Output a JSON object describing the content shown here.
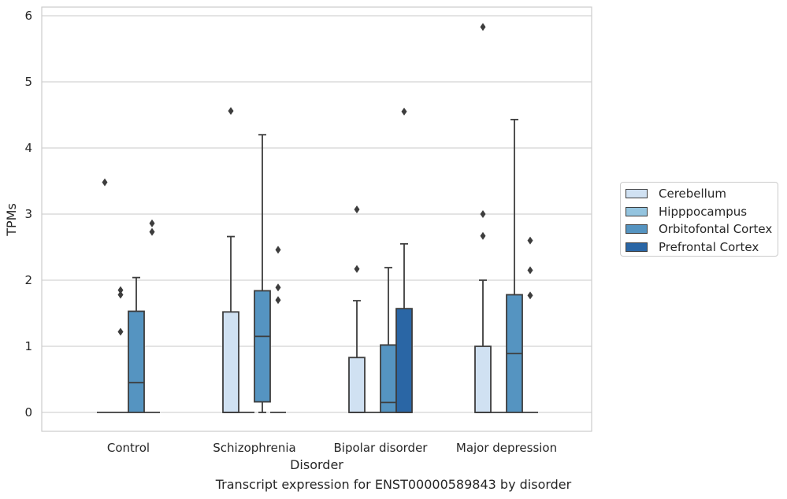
{
  "chart_data": {
    "type": "box",
    "title": "Transcript expression for ENST00000589843 by disorder",
    "xlabel": "Disorder",
    "ylabel": "TPMs",
    "ylim": [
      -0.28,
      6.12
    ],
    "yticks": [
      0,
      1,
      2,
      3,
      4,
      5,
      6
    ],
    "grid": "horizontal",
    "legend_position": "right",
    "categories": [
      "Control",
      "Schizophrenia",
      "Bipolar disorder",
      "Major depression"
    ],
    "series": [
      {
        "name": "Cerebellum",
        "color": "#d0e1f2",
        "boxes": [
          {
            "q1": 0,
            "median": 0,
            "q3": 0,
            "whisker_low": 0,
            "whisker_high": 0,
            "outliers": [
              3.48
            ]
          },
          {
            "q1": 0,
            "median": 0,
            "q3": 1.52,
            "whisker_low": 0,
            "whisker_high": 2.66,
            "outliers": [
              4.56
            ]
          },
          {
            "q1": 0,
            "median": 0,
            "q3": 0.83,
            "whisker_low": 0,
            "whisker_high": 1.69,
            "outliers": [
              2.17,
              3.07
            ]
          },
          {
            "q1": 0,
            "median": 0,
            "q3": 1.0,
            "whisker_low": 0,
            "whisker_high": 2.0,
            "outliers": [
              2.67,
              3.0,
              5.83
            ]
          }
        ]
      },
      {
        "name": "Hipppocampus",
        "color": "#94c4df",
        "boxes": [
          {
            "q1": 0,
            "median": 0,
            "q3": 0,
            "whisker_low": 0,
            "whisker_high": 0,
            "outliers": [
              1.22,
              1.78,
              1.85
            ]
          },
          {
            "q1": 0,
            "median": 0,
            "q3": 0,
            "whisker_low": 0,
            "whisker_high": 0,
            "outliers": []
          },
          {
            "q1": 0,
            "median": 0,
            "q3": 0,
            "whisker_low": 0,
            "whisker_high": 0,
            "outliers": []
          },
          {
            "q1": 0,
            "median": 0,
            "q3": 0,
            "whisker_low": 0,
            "whisker_high": 0,
            "outliers": []
          }
        ]
      },
      {
        "name": "Orbitofontal Cortex",
        "color": "#5594c1",
        "boxes": [
          {
            "q1": 0,
            "median": 0.45,
            "q3": 1.53,
            "whisker_low": 0,
            "whisker_high": 2.04,
            "outliers": []
          },
          {
            "q1": 0.16,
            "median": 1.15,
            "q3": 1.84,
            "whisker_low": 0,
            "whisker_high": 4.2,
            "outliers": []
          },
          {
            "q1": 0,
            "median": 0.15,
            "q3": 1.02,
            "whisker_low": 0,
            "whisker_high": 2.19,
            "outliers": []
          },
          {
            "q1": 0,
            "median": 0.89,
            "q3": 1.78,
            "whisker_low": 0,
            "whisker_high": 4.43,
            "outliers": []
          }
        ]
      },
      {
        "name": "Prefrontal Cortex",
        "color": "#2a66a5",
        "boxes": [
          {
            "q1": 0,
            "median": 0,
            "q3": 0,
            "whisker_low": 0,
            "whisker_high": 0,
            "outliers": [
              2.73,
              2.86
            ]
          },
          {
            "q1": 0,
            "median": 0,
            "q3": 0,
            "whisker_low": 0,
            "whisker_high": 0,
            "outliers": [
              1.7,
              1.89,
              2.46
            ]
          },
          {
            "q1": 0,
            "median": 0,
            "q3": 1.57,
            "whisker_low": 0,
            "whisker_high": 2.55,
            "outliers": [
              4.55
            ]
          },
          {
            "q1": 0,
            "median": 0,
            "q3": 0,
            "whisker_low": 0,
            "whisker_high": 0,
            "outliers": [
              1.77,
              2.15,
              2.6
            ]
          }
        ]
      }
    ]
  }
}
